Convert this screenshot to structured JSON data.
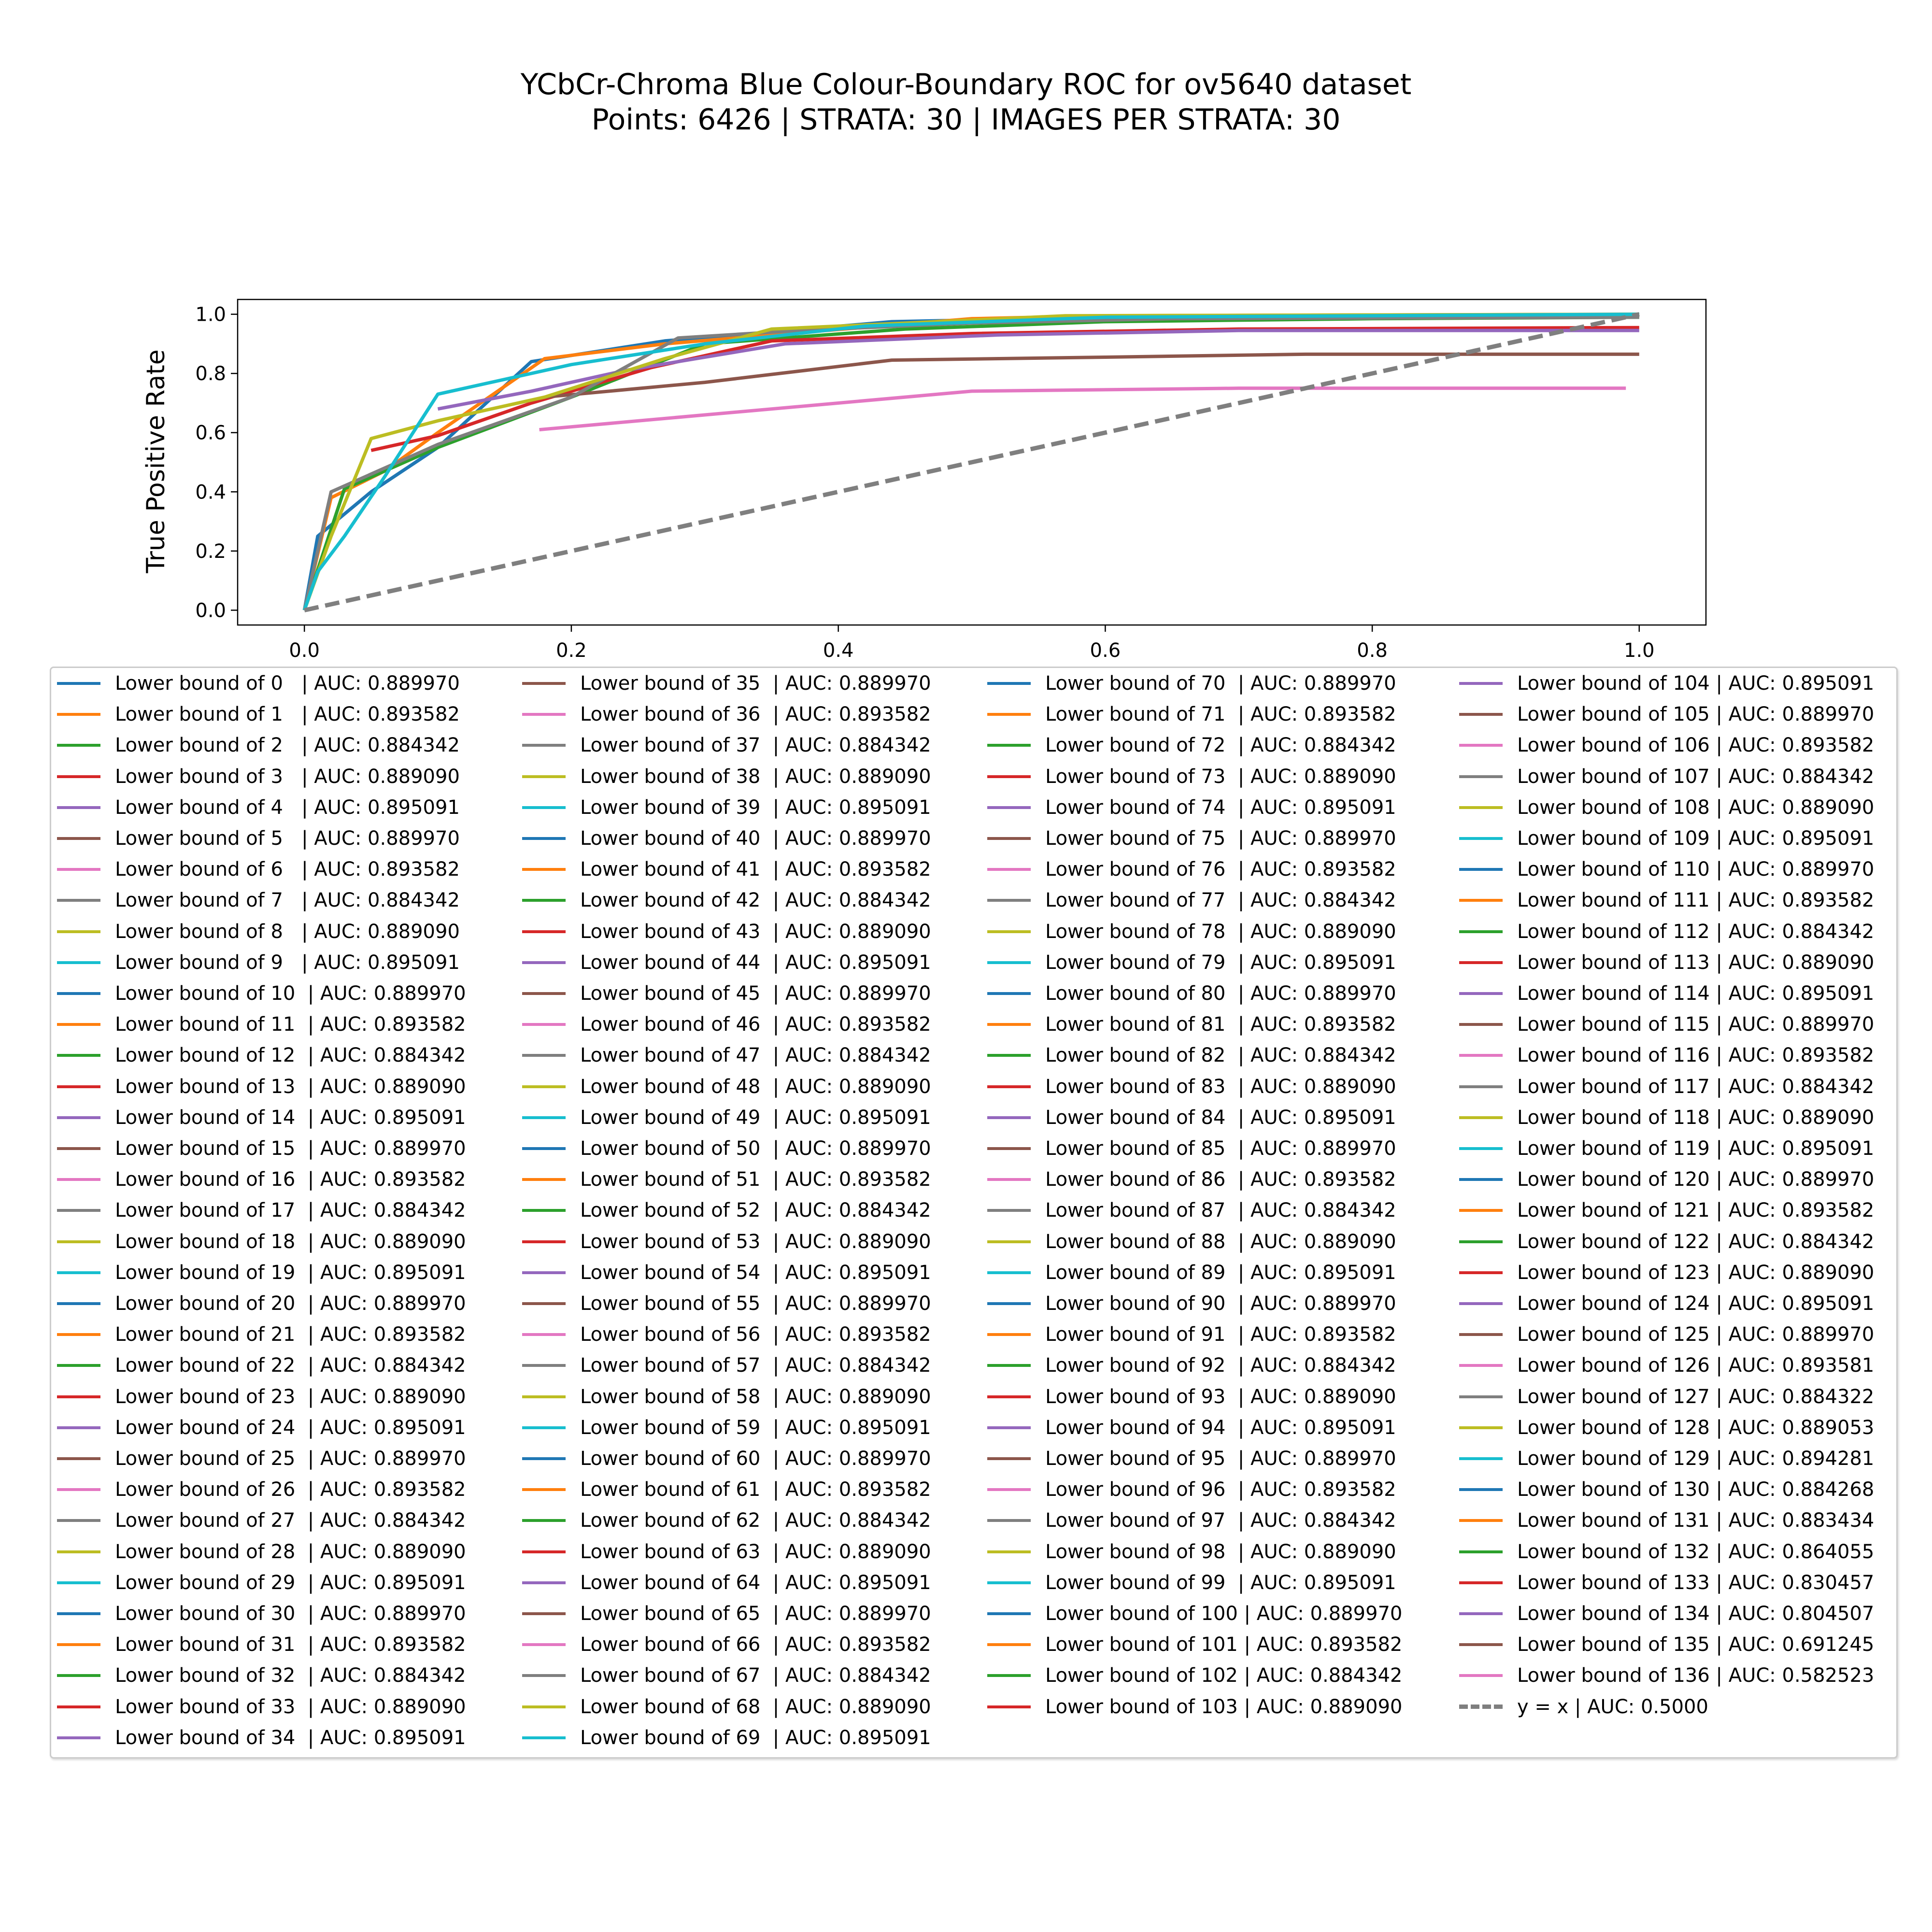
{
  "chart_data": {
    "type": "line",
    "title": "YCbCr-Chroma Blue Colour-Boundary ROC for ov5640 dataset",
    "subtitle": "Points: 6426 | STRATA: 30 | IMAGES PER STRATA: 30",
    "xlabel": "",
    "ylabel": "True Positive Rate",
    "xlim": [
      -0.05,
      1.05
    ],
    "ylim": [
      -0.05,
      1.05
    ],
    "xticks": [
      "0.0",
      "0.2",
      "0.4",
      "0.6",
      "0.8",
      "1.0"
    ],
    "yticks": [
      "0.0",
      "0.2",
      "0.4",
      "0.6",
      "0.8",
      "1.0"
    ],
    "legend_position": "below plot",
    "legend_columns": 4,
    "palette": [
      "#1f77b4",
      "#ff7f0e",
      "#2ca02c",
      "#d62728",
      "#9467bd",
      "#8c564b",
      "#e377c2",
      "#7f7f7f",
      "#bcbd22",
      "#17becf"
    ],
    "curves": [
      {
        "name": "Lower bound of 0",
        "color": "#1f77b4",
        "x": [
          0.0,
          0.01,
          0.05,
          0.1,
          0.17,
          0.27,
          0.35,
          0.44,
          0.55,
          0.7,
          1.0
        ],
        "y": [
          0.0,
          0.25,
          0.4,
          0.55,
          0.84,
          0.91,
          0.94,
          0.975,
          0.985,
          0.99,
          1.0
        ]
      },
      {
        "name": "Lower bound of 1",
        "color": "#ff7f0e",
        "x": [
          0.0,
          0.02,
          0.06,
          0.1,
          0.18,
          0.27,
          0.35,
          0.5,
          0.6,
          1.0
        ],
        "y": [
          0.0,
          0.38,
          0.47,
          0.6,
          0.85,
          0.9,
          0.93,
          0.985,
          0.995,
          1.0
        ]
      },
      {
        "name": "Lower bound of 2",
        "color": "#2ca02c",
        "x": [
          0.0,
          0.03,
          0.1,
          0.2,
          0.3,
          0.45,
          0.6,
          0.8,
          1.0
        ],
        "y": [
          0.0,
          0.41,
          0.55,
          0.72,
          0.9,
          0.95,
          0.975,
          0.985,
          0.99
        ]
      },
      {
        "name": "Lower bound of 3",
        "color": "#d62728",
        "x": [
          0.05,
          0.1,
          0.17,
          0.26,
          0.35,
          0.5,
          0.7,
          1.0
        ],
        "y": [
          0.54,
          0.59,
          0.7,
          0.82,
          0.91,
          0.935,
          0.95,
          0.955
        ]
      },
      {
        "name": "Lower bound of 4",
        "color": "#9467bd",
        "x": [
          0.1,
          0.17,
          0.24,
          0.36,
          0.52,
          0.7,
          1.0
        ],
        "y": [
          0.68,
          0.74,
          0.81,
          0.9,
          0.93,
          0.945,
          0.945
        ]
      },
      {
        "name": "Lower bound of 5",
        "color": "#8c564b",
        "x": [
          0.18,
          0.3,
          0.44,
          0.6,
          0.75,
          1.0
        ],
        "y": [
          0.72,
          0.77,
          0.845,
          0.855,
          0.865,
          0.865
        ]
      },
      {
        "name": "Lower bound of 6",
        "color": "#e377c2",
        "x": [
          0.176,
          0.3,
          0.5,
          0.7,
          0.99
        ],
        "y": [
          0.61,
          0.66,
          0.74,
          0.75,
          0.75
        ]
      },
      {
        "name": "Lower bound of 7",
        "color": "#7f7f7f",
        "x": [
          0.0,
          0.02,
          0.05,
          0.1,
          0.2,
          0.28,
          0.37,
          0.5,
          0.65,
          1.0
        ],
        "y": [
          0.0,
          0.4,
          0.46,
          0.56,
          0.72,
          0.92,
          0.945,
          0.97,
          0.985,
          0.99
        ]
      },
      {
        "name": "Lower bound of 8",
        "color": "#bcbd22",
        "x": [
          0.0,
          0.02,
          0.05,
          0.1,
          0.18,
          0.27,
          0.35,
          0.45,
          0.57,
          1.0
        ],
        "y": [
          0.0,
          0.25,
          0.58,
          0.64,
          0.72,
          0.85,
          0.95,
          0.97,
          0.995,
          1.0
        ]
      },
      {
        "name": "Lower bound of 9",
        "color": "#17becf",
        "x": [
          0.0,
          0.01,
          0.03,
          0.06,
          0.1,
          0.2,
          0.3,
          0.42,
          0.6,
          1.0
        ],
        "y": [
          0.0,
          0.13,
          0.25,
          0.45,
          0.73,
          0.83,
          0.9,
          0.96,
          0.99,
          1.0
        ]
      }
    ],
    "diagonal": {
      "name": "y = x",
      "color": "#7f7f7f",
      "x": [
        0.0,
        1.0
      ],
      "y": [
        0.0,
        1.0
      ],
      "style": "dashed"
    },
    "legend": [
      {
        "label": "Lower bound of 0   | AUC: 0.889970",
        "color": "#1f77b4"
      },
      {
        "label": "Lower bound of 1   | AUC: 0.893582",
        "color": "#ff7f0e"
      },
      {
        "label": "Lower bound of 2   | AUC: 0.884342",
        "color": "#2ca02c"
      },
      {
        "label": "Lower bound of 3   | AUC: 0.889090",
        "color": "#d62728"
      },
      {
        "label": "Lower bound of 4   | AUC: 0.895091",
        "color": "#9467bd"
      },
      {
        "label": "Lower bound of 5   | AUC: 0.889970",
        "color": "#8c564b"
      },
      {
        "label": "Lower bound of 6   | AUC: 0.893582",
        "color": "#e377c2"
      },
      {
        "label": "Lower bound of 7   | AUC: 0.884342",
        "color": "#7f7f7f"
      },
      {
        "label": "Lower bound of 8   | AUC: 0.889090",
        "color": "#bcbd22"
      },
      {
        "label": "Lower bound of 9   | AUC: 0.895091",
        "color": "#17becf"
      },
      {
        "label": "Lower bound of 10  | AUC: 0.889970",
        "color": "#1f77b4"
      },
      {
        "label": "Lower bound of 11  | AUC: 0.893582",
        "color": "#ff7f0e"
      },
      {
        "label": "Lower bound of 12  | AUC: 0.884342",
        "color": "#2ca02c"
      },
      {
        "label": "Lower bound of 13  | AUC: 0.889090",
        "color": "#d62728"
      },
      {
        "label": "Lower bound of 14  | AUC: 0.895091",
        "color": "#9467bd"
      },
      {
        "label": "Lower bound of 15  | AUC: 0.889970",
        "color": "#8c564b"
      },
      {
        "label": "Lower bound of 16  | AUC: 0.893582",
        "color": "#e377c2"
      },
      {
        "label": "Lower bound of 17  | AUC: 0.884342",
        "color": "#7f7f7f"
      },
      {
        "label": "Lower bound of 18  | AUC: 0.889090",
        "color": "#bcbd22"
      },
      {
        "label": "Lower bound of 19  | AUC: 0.895091",
        "color": "#17becf"
      },
      {
        "label": "Lower bound of 20  | AUC: 0.889970",
        "color": "#1f77b4"
      },
      {
        "label": "Lower bound of 21  | AUC: 0.893582",
        "color": "#ff7f0e"
      },
      {
        "label": "Lower bound of 22  | AUC: 0.884342",
        "color": "#2ca02c"
      },
      {
        "label": "Lower bound of 23  | AUC: 0.889090",
        "color": "#d62728"
      },
      {
        "label": "Lower bound of 24  | AUC: 0.895091",
        "color": "#9467bd"
      },
      {
        "label": "Lower bound of 25  | AUC: 0.889970",
        "color": "#8c564b"
      },
      {
        "label": "Lower bound of 26  | AUC: 0.893582",
        "color": "#e377c2"
      },
      {
        "label": "Lower bound of 27  | AUC: 0.884342",
        "color": "#7f7f7f"
      },
      {
        "label": "Lower bound of 28  | AUC: 0.889090",
        "color": "#bcbd22"
      },
      {
        "label": "Lower bound of 29  | AUC: 0.895091",
        "color": "#17becf"
      },
      {
        "label": "Lower bound of 30  | AUC: 0.889970",
        "color": "#1f77b4"
      },
      {
        "label": "Lower bound of 31  | AUC: 0.893582",
        "color": "#ff7f0e"
      },
      {
        "label": "Lower bound of 32  | AUC: 0.884342",
        "color": "#2ca02c"
      },
      {
        "label": "Lower bound of 33  | AUC: 0.889090",
        "color": "#d62728"
      },
      {
        "label": "Lower bound of 34  | AUC: 0.895091",
        "color": "#9467bd"
      },
      {
        "label": "Lower bound of 35  | AUC: 0.889970",
        "color": "#8c564b"
      },
      {
        "label": "Lower bound of 36  | AUC: 0.893582",
        "color": "#e377c2"
      },
      {
        "label": "Lower bound of 37  | AUC: 0.884342",
        "color": "#7f7f7f"
      },
      {
        "label": "Lower bound of 38  | AUC: 0.889090",
        "color": "#bcbd22"
      },
      {
        "label": "Lower bound of 39  | AUC: 0.895091",
        "color": "#17becf"
      },
      {
        "label": "Lower bound of 40  | AUC: 0.889970",
        "color": "#1f77b4"
      },
      {
        "label": "Lower bound of 41  | AUC: 0.893582",
        "color": "#ff7f0e"
      },
      {
        "label": "Lower bound of 42  | AUC: 0.884342",
        "color": "#2ca02c"
      },
      {
        "label": "Lower bound of 43  | AUC: 0.889090",
        "color": "#d62728"
      },
      {
        "label": "Lower bound of 44  | AUC: 0.895091",
        "color": "#9467bd"
      },
      {
        "label": "Lower bound of 45  | AUC: 0.889970",
        "color": "#8c564b"
      },
      {
        "label": "Lower bound of 46  | AUC: 0.893582",
        "color": "#e377c2"
      },
      {
        "label": "Lower bound of 47  | AUC: 0.884342",
        "color": "#7f7f7f"
      },
      {
        "label": "Lower bound of 48  | AUC: 0.889090",
        "color": "#bcbd22"
      },
      {
        "label": "Lower bound of 49  | AUC: 0.895091",
        "color": "#17becf"
      },
      {
        "label": "Lower bound of 50  | AUC: 0.889970",
        "color": "#1f77b4"
      },
      {
        "label": "Lower bound of 51  | AUC: 0.893582",
        "color": "#ff7f0e"
      },
      {
        "label": "Lower bound of 52  | AUC: 0.884342",
        "color": "#2ca02c"
      },
      {
        "label": "Lower bound of 53  | AUC: 0.889090",
        "color": "#d62728"
      },
      {
        "label": "Lower bound of 54  | AUC: 0.895091",
        "color": "#9467bd"
      },
      {
        "label": "Lower bound of 55  | AUC: 0.889970",
        "color": "#8c564b"
      },
      {
        "label": "Lower bound of 56  | AUC: 0.893582",
        "color": "#e377c2"
      },
      {
        "label": "Lower bound of 57  | AUC: 0.884342",
        "color": "#7f7f7f"
      },
      {
        "label": "Lower bound of 58  | AUC: 0.889090",
        "color": "#bcbd22"
      },
      {
        "label": "Lower bound of 59  | AUC: 0.895091",
        "color": "#17becf"
      },
      {
        "label": "Lower bound of 60  | AUC: 0.889970",
        "color": "#1f77b4"
      },
      {
        "label": "Lower bound of 61  | AUC: 0.893582",
        "color": "#ff7f0e"
      },
      {
        "label": "Lower bound of 62  | AUC: 0.884342",
        "color": "#2ca02c"
      },
      {
        "label": "Lower bound of 63  | AUC: 0.889090",
        "color": "#d62728"
      },
      {
        "label": "Lower bound of 64  | AUC: 0.895091",
        "color": "#9467bd"
      },
      {
        "label": "Lower bound of 65  | AUC: 0.889970",
        "color": "#8c564b"
      },
      {
        "label": "Lower bound of 66  | AUC: 0.893582",
        "color": "#e377c2"
      },
      {
        "label": "Lower bound of 67  | AUC: 0.884342",
        "color": "#7f7f7f"
      },
      {
        "label": "Lower bound of 68  | AUC: 0.889090",
        "color": "#bcbd22"
      },
      {
        "label": "Lower bound of 69  | AUC: 0.895091",
        "color": "#17becf"
      },
      {
        "label": "Lower bound of 70  | AUC: 0.889970",
        "color": "#1f77b4"
      },
      {
        "label": "Lower bound of 71  | AUC: 0.893582",
        "color": "#ff7f0e"
      },
      {
        "label": "Lower bound of 72  | AUC: 0.884342",
        "color": "#2ca02c"
      },
      {
        "label": "Lower bound of 73  | AUC: 0.889090",
        "color": "#d62728"
      },
      {
        "label": "Lower bound of 74  | AUC: 0.895091",
        "color": "#9467bd"
      },
      {
        "label": "Lower bound of 75  | AUC: 0.889970",
        "color": "#8c564b"
      },
      {
        "label": "Lower bound of 76  | AUC: 0.893582",
        "color": "#e377c2"
      },
      {
        "label": "Lower bound of 77  | AUC: 0.884342",
        "color": "#7f7f7f"
      },
      {
        "label": "Lower bound of 78  | AUC: 0.889090",
        "color": "#bcbd22"
      },
      {
        "label": "Lower bound of 79  | AUC: 0.895091",
        "color": "#17becf"
      },
      {
        "label": "Lower bound of 80  | AUC: 0.889970",
        "color": "#1f77b4"
      },
      {
        "label": "Lower bound of 81  | AUC: 0.893582",
        "color": "#ff7f0e"
      },
      {
        "label": "Lower bound of 82  | AUC: 0.884342",
        "color": "#2ca02c"
      },
      {
        "label": "Lower bound of 83  | AUC: 0.889090",
        "color": "#d62728"
      },
      {
        "label": "Lower bound of 84  | AUC: 0.895091",
        "color": "#9467bd"
      },
      {
        "label": "Lower bound of 85  | AUC: 0.889970",
        "color": "#8c564b"
      },
      {
        "label": "Lower bound of 86  | AUC: 0.893582",
        "color": "#e377c2"
      },
      {
        "label": "Lower bound of 87  | AUC: 0.884342",
        "color": "#7f7f7f"
      },
      {
        "label": "Lower bound of 88  | AUC: 0.889090",
        "color": "#bcbd22"
      },
      {
        "label": "Lower bound of 89  | AUC: 0.895091",
        "color": "#17becf"
      },
      {
        "label": "Lower bound of 90  | AUC: 0.889970",
        "color": "#1f77b4"
      },
      {
        "label": "Lower bound of 91  | AUC: 0.893582",
        "color": "#ff7f0e"
      },
      {
        "label": "Lower bound of 92  | AUC: 0.884342",
        "color": "#2ca02c"
      },
      {
        "label": "Lower bound of 93  | AUC: 0.889090",
        "color": "#d62728"
      },
      {
        "label": "Lower bound of 94  | AUC: 0.895091",
        "color": "#9467bd"
      },
      {
        "label": "Lower bound of 95  | AUC: 0.889970",
        "color": "#8c564b"
      },
      {
        "label": "Lower bound of 96  | AUC: 0.893582",
        "color": "#e377c2"
      },
      {
        "label": "Lower bound of 97  | AUC: 0.884342",
        "color": "#7f7f7f"
      },
      {
        "label": "Lower bound of 98  | AUC: 0.889090",
        "color": "#bcbd22"
      },
      {
        "label": "Lower bound of 99  | AUC: 0.895091",
        "color": "#17becf"
      },
      {
        "label": "Lower bound of 100 | AUC: 0.889970",
        "color": "#1f77b4"
      },
      {
        "label": "Lower bound of 101 | AUC: 0.893582",
        "color": "#ff7f0e"
      },
      {
        "label": "Lower bound of 102 | AUC: 0.884342",
        "color": "#2ca02c"
      },
      {
        "label": "Lower bound of 103 | AUC: 0.889090",
        "color": "#d62728"
      },
      {
        "label": "Lower bound of 104 | AUC: 0.895091",
        "color": "#9467bd"
      },
      {
        "label": "Lower bound of 105 | AUC: 0.889970",
        "color": "#8c564b"
      },
      {
        "label": "Lower bound of 106 | AUC: 0.893582",
        "color": "#e377c2"
      },
      {
        "label": "Lower bound of 107 | AUC: 0.884342",
        "color": "#7f7f7f"
      },
      {
        "label": "Lower bound of 108 | AUC: 0.889090",
        "color": "#bcbd22"
      },
      {
        "label": "Lower bound of 109 | AUC: 0.895091",
        "color": "#17becf"
      },
      {
        "label": "Lower bound of 110 | AUC: 0.889970",
        "color": "#1f77b4"
      },
      {
        "label": "Lower bound of 111 | AUC: 0.893582",
        "color": "#ff7f0e"
      },
      {
        "label": "Lower bound of 112 | AUC: 0.884342",
        "color": "#2ca02c"
      },
      {
        "label": "Lower bound of 113 | AUC: 0.889090",
        "color": "#d62728"
      },
      {
        "label": "Lower bound of 114 | AUC: 0.895091",
        "color": "#9467bd"
      },
      {
        "label": "Lower bound of 115 | AUC: 0.889970",
        "color": "#8c564b"
      },
      {
        "label": "Lower bound of 116 | AUC: 0.893582",
        "color": "#e377c2"
      },
      {
        "label": "Lower bound of 117 | AUC: 0.884342",
        "color": "#7f7f7f"
      },
      {
        "label": "Lower bound of 118 | AUC: 0.889090",
        "color": "#bcbd22"
      },
      {
        "label": "Lower bound of 119 | AUC: 0.895091",
        "color": "#17becf"
      },
      {
        "label": "Lower bound of 120 | AUC: 0.889970",
        "color": "#1f77b4"
      },
      {
        "label": "Lower bound of 121 | AUC: 0.893582",
        "color": "#ff7f0e"
      },
      {
        "label": "Lower bound of 122 | AUC: 0.884342",
        "color": "#2ca02c"
      },
      {
        "label": "Lower bound of 123 | AUC: 0.889090",
        "color": "#d62728"
      },
      {
        "label": "Lower bound of 124 | AUC: 0.895091",
        "color": "#9467bd"
      },
      {
        "label": "Lower bound of 125 | AUC: 0.889970",
        "color": "#8c564b"
      },
      {
        "label": "Lower bound of 126 | AUC: 0.893581",
        "color": "#e377c2"
      },
      {
        "label": "Lower bound of 127 | AUC: 0.884322",
        "color": "#7f7f7f"
      },
      {
        "label": "Lower bound of 128 | AUC: 0.889053",
        "color": "#bcbd22"
      },
      {
        "label": "Lower bound of 129 | AUC: 0.894281",
        "color": "#17becf"
      },
      {
        "label": "Lower bound of 130 | AUC: 0.884268",
        "color": "#1f77b4"
      },
      {
        "label": "Lower bound of 131 | AUC: 0.883434",
        "color": "#ff7f0e"
      },
      {
        "label": "Lower bound of 132 | AUC: 0.864055",
        "color": "#2ca02c"
      },
      {
        "label": "Lower bound of 133 | AUC: 0.830457",
        "color": "#d62728"
      },
      {
        "label": "Lower bound of 134 | AUC: 0.804507",
        "color": "#9467bd"
      },
      {
        "label": "Lower bound of 135 | AUC: 0.691245",
        "color": "#8c564b"
      },
      {
        "label": "Lower bound of 136 | AUC: 0.582523",
        "color": "#e377c2"
      },
      {
        "label": "y = x | AUC: 0.5000",
        "color": "#7f7f7f",
        "dashed": true
      }
    ]
  }
}
